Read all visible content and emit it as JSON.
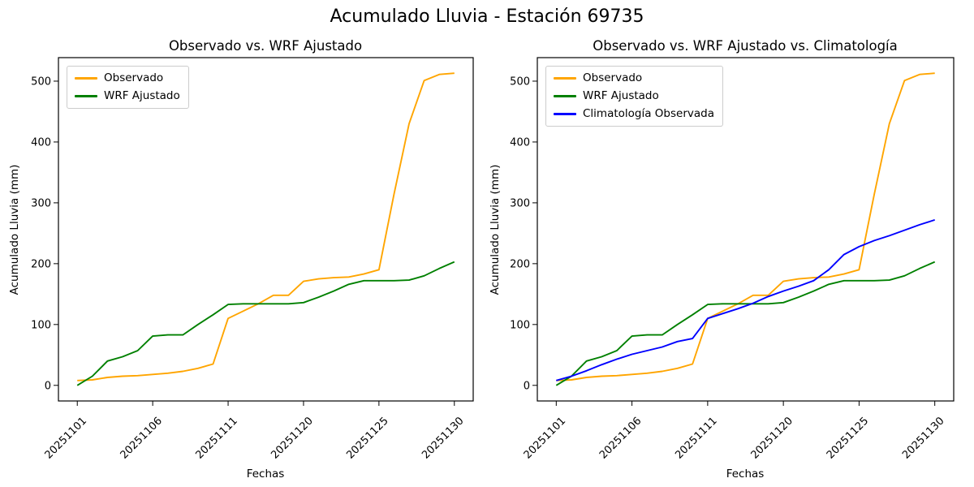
{
  "figure_title": "Acumulado Lluvia - Estación 69735",
  "chart_data": [
    {
      "type": "line",
      "title": "Observado vs. WRF Ajustado",
      "xlabel": "Fechas",
      "ylabel": "Acumulado Lluvia (mm)",
      "grid": false,
      "legend_position": "upper left",
      "y_ticks": [
        0,
        100,
        200,
        300,
        400,
        500
      ],
      "x_tick_labels": [
        "20251101",
        "20251106",
        "20251111",
        "20251120",
        "20251125",
        "20251130"
      ],
      "x_tick_indices": [
        0,
        5,
        10,
        15,
        20,
        25
      ],
      "xlim": [
        -1.25,
        26.25
      ],
      "ylim": [
        -25.65,
        538.65
      ],
      "categories": [
        "20251101",
        "20251102",
        "20251103",
        "20251104",
        "20251105",
        "20251106",
        "20251107",
        "20251108",
        "20251109",
        "20251110",
        "20251111",
        "20251116",
        "20251117",
        "20251118",
        "20251119",
        "20251120",
        "20251121",
        "20251122",
        "20251123",
        "20251124",
        "20251125",
        "20251126",
        "20251127",
        "20251128",
        "20251129",
        "20251130"
      ],
      "series": [
        {
          "name": "Observado",
          "color": "#FFA500",
          "values": [
            8,
            9,
            13,
            15,
            16,
            18,
            20,
            23,
            28,
            35,
            110,
            122,
            134,
            148,
            148,
            171,
            175,
            177,
            178,
            183,
            190,
            314,
            430,
            501,
            511,
            513
          ]
        },
        {
          "name": "WRF Ajustado",
          "color": "#008000",
          "values": [
            0,
            15,
            40,
            47,
            57,
            81,
            83,
            83,
            100,
            116,
            133,
            134,
            134,
            134,
            134,
            136,
            145,
            155,
            166,
            172,
            172,
            172,
            173,
            180,
            192,
            203
          ]
        }
      ]
    },
    {
      "type": "line",
      "title": "Observado vs. WRF Ajustado vs. Climatología",
      "xlabel": "Fechas",
      "ylabel": "Acumulado Lluvia (mm)",
      "grid": false,
      "legend_position": "upper left",
      "y_ticks": [
        0,
        100,
        200,
        300,
        400,
        500
      ],
      "x_tick_labels": [
        "20251101",
        "20251106",
        "20251111",
        "20251120",
        "20251125",
        "20251130"
      ],
      "x_tick_indices": [
        0,
        5,
        10,
        15,
        20,
        25
      ],
      "xlim": [
        -1.25,
        26.25
      ],
      "ylim": [
        -25.65,
        538.65
      ],
      "categories": [
        "20251101",
        "20251102",
        "20251103",
        "20251104",
        "20251105",
        "20251106",
        "20251107",
        "20251108",
        "20251109",
        "20251110",
        "20251111",
        "20251116",
        "20251117",
        "20251118",
        "20251119",
        "20251120",
        "20251121",
        "20251122",
        "20251123",
        "20251124",
        "20251125",
        "20251126",
        "20251127",
        "20251128",
        "20251129",
        "20251130"
      ],
      "series": [
        {
          "name": "Observado",
          "color": "#FFA500",
          "values": [
            8,
            9,
            13,
            15,
            16,
            18,
            20,
            23,
            28,
            35,
            110,
            122,
            134,
            148,
            148,
            171,
            175,
            177,
            178,
            183,
            190,
            314,
            430,
            501,
            511,
            513
          ]
        },
        {
          "name": "WRF Ajustado",
          "color": "#008000",
          "values": [
            0,
            15,
            40,
            47,
            57,
            81,
            83,
            83,
            100,
            116,
            133,
            134,
            134,
            134,
            134,
            136,
            145,
            155,
            166,
            172,
            172,
            172,
            173,
            180,
            192,
            203
          ]
        },
        {
          "name": "Climatología Observada",
          "color": "#0000FF",
          "values": [
            8,
            15,
            24,
            34,
            43,
            51,
            57,
            63,
            72,
            77,
            110,
            118,
            126,
            135,
            146,
            155,
            163,
            172,
            190,
            215,
            228,
            238,
            246,
            255,
            264,
            272
          ]
        }
      ]
    }
  ]
}
